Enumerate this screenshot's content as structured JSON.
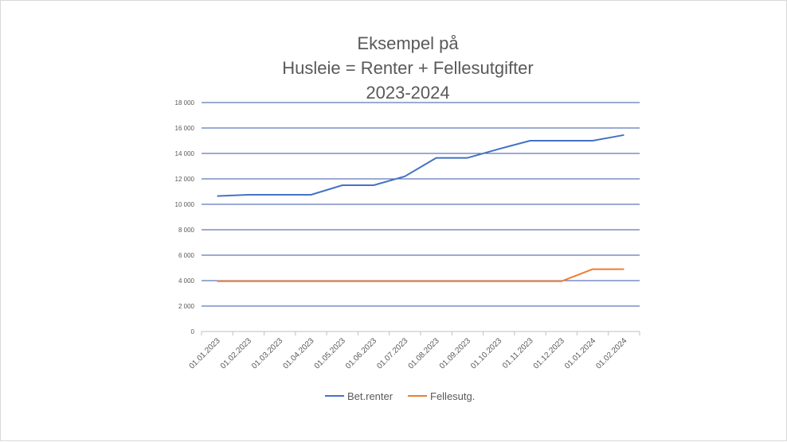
{
  "chart_data": {
    "type": "line",
    "title_lines": [
      "Eksempel på",
      "Husleie = Renter + Fellesutgifter",
      "2023-2024"
    ],
    "categories": [
      "01.01.2023",
      "01.02.2023",
      "01.03.2023",
      "01.04.2023",
      "01.05.2023",
      "01.06.2023",
      "01.07.2023",
      "01.08.2023",
      "01.09.2023",
      "01.10.2023",
      "01.11.2023",
      "01.12.2023",
      "01.01.2024",
      "01.02.2024"
    ],
    "y_ticks": [
      "0",
      "2 000",
      "4 000",
      "6 000",
      "8 000",
      "10 000",
      "12 000",
      "14 000",
      "16 000",
      "18 000"
    ],
    "ylim": [
      0,
      18000
    ],
    "grid": true,
    "legend_position": "bottom",
    "series": [
      {
        "name": "Bet.renter",
        "color": "#4472c4",
        "values": [
          10650,
          10750,
          10750,
          10750,
          11500,
          11500,
          12200,
          13650,
          13650,
          14350,
          15000,
          15000,
          15000,
          15450
        ]
      },
      {
        "name": "Fellesutg.",
        "color": "#ed7d31",
        "values": [
          3950,
          3950,
          3950,
          3950,
          3950,
          3950,
          3950,
          3950,
          3950,
          3950,
          3950,
          3950,
          4900,
          4900
        ]
      }
    ],
    "gridline_color": "#3a56a8"
  }
}
